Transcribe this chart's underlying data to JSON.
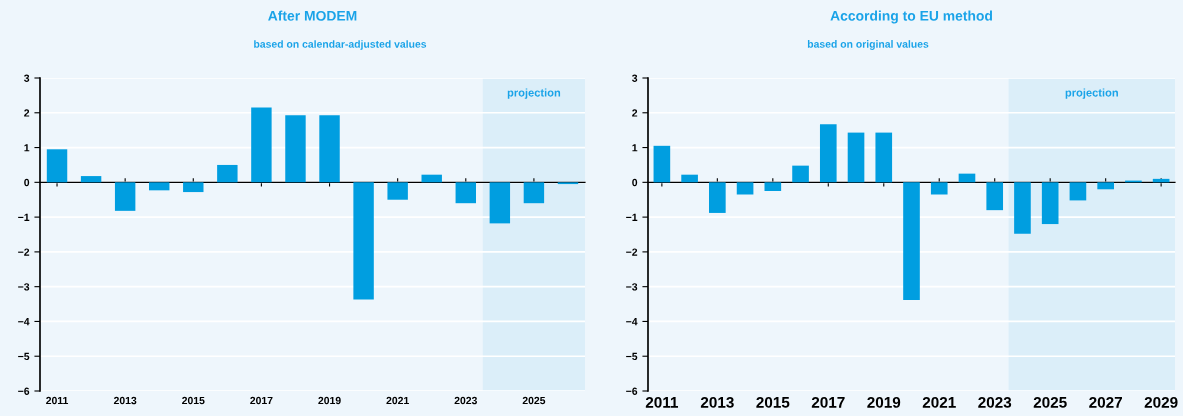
{
  "chart_data": [
    {
      "type": "bar",
      "title": "After MODEM",
      "subtitle": "based on calendar-adjusted values",
      "x": [
        2011,
        2012,
        2013,
        2014,
        2015,
        2016,
        2017,
        2018,
        2019,
        2020,
        2021,
        2022,
        2023,
        2024,
        2025,
        2026
      ],
      "values": [
        0.95,
        0.18,
        -0.82,
        -0.23,
        -0.28,
        0.5,
        2.15,
        1.93,
        1.93,
        -3.37,
        -0.5,
        0.22,
        -0.6,
        -1.18,
        -0.6,
        -0.05
      ],
      "color": "#009ee0",
      "xlim": [
        2010.5,
        2026.5
      ],
      "xticks": [
        2011,
        2013,
        2015,
        2017,
        2019,
        2021,
        2023,
        2025
      ],
      "ylim": [
        -6,
        3
      ],
      "yticks": [
        -6,
        -5,
        -4,
        -3,
        -2,
        -1,
        0,
        1,
        2,
        3
      ],
      "grid": "y",
      "bands": [
        {
          "axis": "x",
          "from": 2023.5,
          "to": 2026.5,
          "label": "projection",
          "color": "#dbeef9"
        }
      ]
    },
    {
      "type": "bar",
      "title": "According to EU method",
      "subtitle": "based on original values",
      "x": [
        2011,
        2012,
        2013,
        2014,
        2015,
        2016,
        2017,
        2018,
        2019,
        2020,
        2021,
        2022,
        2023,
        2024,
        2025,
        2026,
        2027,
        2028,
        2029
      ],
      "values": [
        1.05,
        0.22,
        -0.88,
        -0.35,
        -0.25,
        0.48,
        1.67,
        1.43,
        1.43,
        -3.38,
        -0.35,
        0.25,
        -0.8,
        -1.48,
        -1.2,
        -0.52,
        -0.2,
        0.05,
        0.1
      ],
      "color": "#009ee0",
      "xlim": [
        2010.5,
        2029.5
      ],
      "xticks": [
        2011,
        2013,
        2015,
        2017,
        2019,
        2021,
        2023,
        2025,
        2027,
        2029
      ],
      "ylim": [
        -6,
        3
      ],
      "yticks": [
        -6,
        -5,
        -4,
        -3,
        -2,
        -1,
        0,
        1,
        2,
        3
      ],
      "grid": "y",
      "bands": [
        {
          "axis": "x",
          "from": 2023.5,
          "to": 2029.5,
          "label": "projection",
          "color": "#dbeef9"
        }
      ]
    }
  ]
}
